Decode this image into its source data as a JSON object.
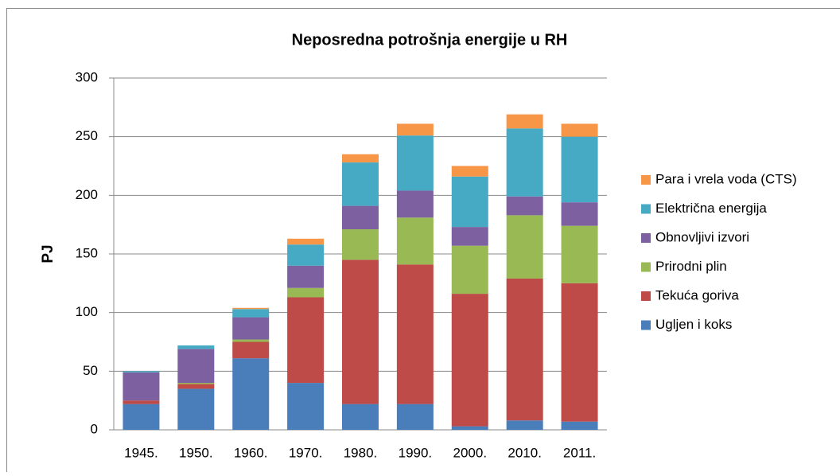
{
  "chart_data": {
    "type": "stacked_bar",
    "title": "Neposredna potrošnja energije u RH",
    "y_label": "PJ",
    "categories": [
      "1945.",
      "1950.",
      "1960.",
      "1970.",
      "1980.",
      "1990.",
      "2000.",
      "2010.",
      "2011."
    ],
    "series": [
      {
        "name": "Ugljen i koks",
        "color": "#4a7ebb",
        "values": [
          22,
          35,
          61,
          40,
          22,
          22,
          3,
          8,
          7
        ]
      },
      {
        "name": "Tekuća goriva",
        "color": "#be4b48",
        "values": [
          3,
          4,
          14,
          73,
          123,
          119,
          113,
          121,
          118
        ]
      },
      {
        "name": "Prirodni plin",
        "color": "#98b954",
        "values": [
          0,
          1,
          2,
          8,
          26,
          40,
          41,
          54,
          49
        ]
      },
      {
        "name": "Obnovljivi izvori",
        "color": "#7d60a0",
        "values": [
          24,
          29,
          19,
          19,
          20,
          23,
          16,
          16,
          20
        ]
      },
      {
        "name": "Električna energija",
        "color": "#46aac5",
        "values": [
          1,
          3,
          7,
          18,
          37,
          47,
          43,
          58,
          56
        ]
      },
      {
        "name": "Para i vrela voda (CTS)",
        "color": "#f79646",
        "values": [
          0,
          0,
          1,
          5,
          7,
          10,
          9,
          12,
          11
        ]
      }
    ],
    "ylim": [
      0,
      300
    ],
    "yticks": [
      0,
      50,
      100,
      150,
      200,
      250,
      300
    ],
    "grid": true,
    "legend": "right"
  }
}
